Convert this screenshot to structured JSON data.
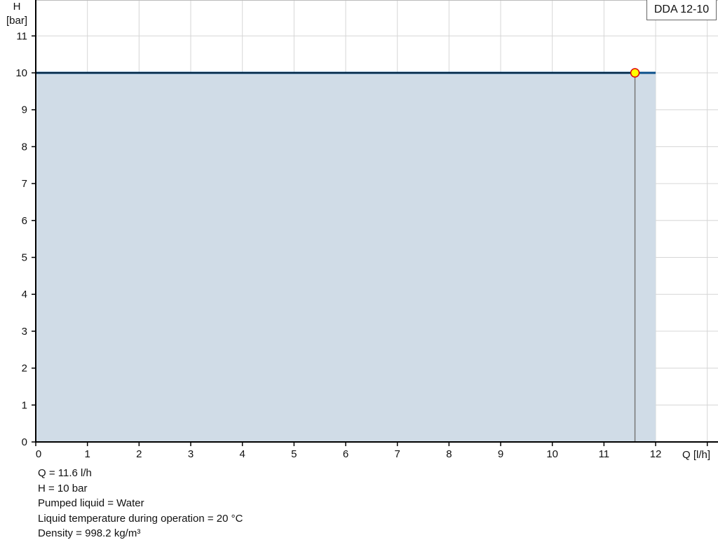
{
  "chart_data": {
    "type": "area",
    "title": "",
    "legend_label": "DDA 12-10",
    "legend_placement": "top-right",
    "xlabel": "Q [l/h]",
    "ylabel_line1": "H",
    "ylabel_line2": "[bar]",
    "xlim": [
      0,
      13
    ],
    "ylim": [
      0,
      12
    ],
    "x_ticks": [
      "0",
      "1",
      "2",
      "3",
      "4",
      "5",
      "6",
      "7",
      "8",
      "9",
      "10",
      "11",
      "12"
    ],
    "y_ticks": [
      "0",
      "1",
      "2",
      "3",
      "4",
      "5",
      "6",
      "7",
      "8",
      "9",
      "10",
      "11"
    ],
    "grid": true,
    "series": [
      {
        "x": [
          0,
          12
        ],
        "y": [
          10,
          10
        ],
        "color": "#0b4f8a",
        "fill": "#d0dce7"
      }
    ],
    "operating_point": {
      "x": 11.6,
      "y": 10,
      "fill": "#ffff00",
      "stroke": "#e00000"
    }
  },
  "info": [
    "Q = 11.6 l/h",
    "H = 10 bar",
    "Pumped liquid = Water",
    "Liquid temperature during operation = 20 °C",
    "Density = 998.2 kg/m³"
  ]
}
